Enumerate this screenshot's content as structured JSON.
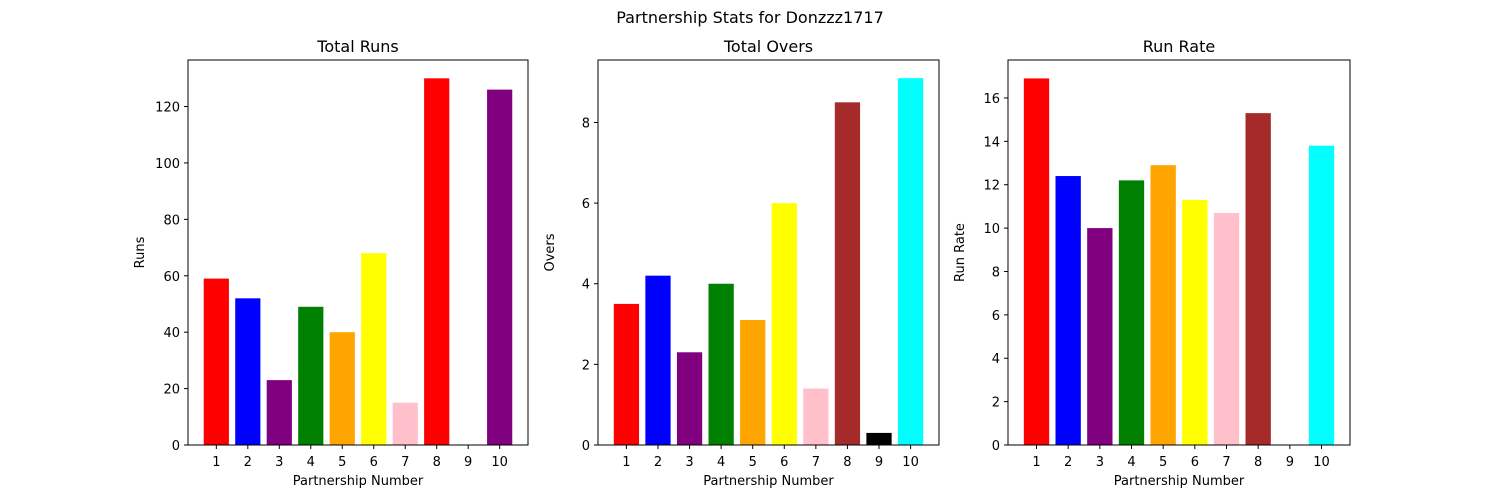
{
  "figure": {
    "suptitle": "Partnership Stats for Donzzz1717"
  },
  "chart_data": [
    {
      "type": "bar",
      "title": "Total Runs",
      "xlabel": "Partnership Number",
      "ylabel": "Runs",
      "categories": [
        "1",
        "2",
        "3",
        "4",
        "5",
        "6",
        "7",
        "8",
        "9",
        "10"
      ],
      "values": [
        59,
        52,
        23,
        49,
        40,
        68,
        15,
        130,
        0,
        126
      ],
      "colors": [
        "#ff0000",
        "#0000ff",
        "#800080",
        "#008000",
        "#ffa500",
        "#ffff00",
        "#ffc0cb",
        "#ff0000",
        "#0000ff",
        "#800080"
      ],
      "ylim": [
        0,
        136.5
      ],
      "yticks": [
        0,
        20,
        40,
        60,
        80,
        100,
        120
      ],
      "grid": false
    },
    {
      "type": "bar",
      "title": "Total Overs",
      "xlabel": "Partnership Number",
      "ylabel": "Overs",
      "categories": [
        "1",
        "2",
        "3",
        "4",
        "5",
        "6",
        "7",
        "8",
        "9",
        "10"
      ],
      "values": [
        3.5,
        4.2,
        2.3,
        4.0,
        3.1,
        6.0,
        1.4,
        8.5,
        0.3,
        9.1
      ],
      "colors": [
        "#ff0000",
        "#0000ff",
        "#800080",
        "#008000",
        "#ffa500",
        "#ffff00",
        "#ffc0cb",
        "#a52a2a",
        "#000000",
        "#00ffff"
      ],
      "ylim": [
        0,
        9.55
      ],
      "yticks": [
        0,
        2,
        4,
        6,
        8
      ],
      "grid": false
    },
    {
      "type": "bar",
      "title": "Run Rate",
      "xlabel": "Partnership Number",
      "ylabel": "Run Rate",
      "categories": [
        "1",
        "2",
        "3",
        "4",
        "5",
        "6",
        "7",
        "8",
        "9",
        "10"
      ],
      "values": [
        16.9,
        12.4,
        10.0,
        12.2,
        12.9,
        11.3,
        10.7,
        15.3,
        0,
        13.8
      ],
      "colors": [
        "#ff0000",
        "#0000ff",
        "#800080",
        "#008000",
        "#ffa500",
        "#ffff00",
        "#ffc0cb",
        "#a52a2a",
        "#000000",
        "#00ffff"
      ],
      "ylim": [
        0,
        17.75
      ],
      "yticks": [
        0,
        2,
        4,
        6,
        8,
        10,
        12,
        14,
        16
      ],
      "grid": false
    }
  ]
}
